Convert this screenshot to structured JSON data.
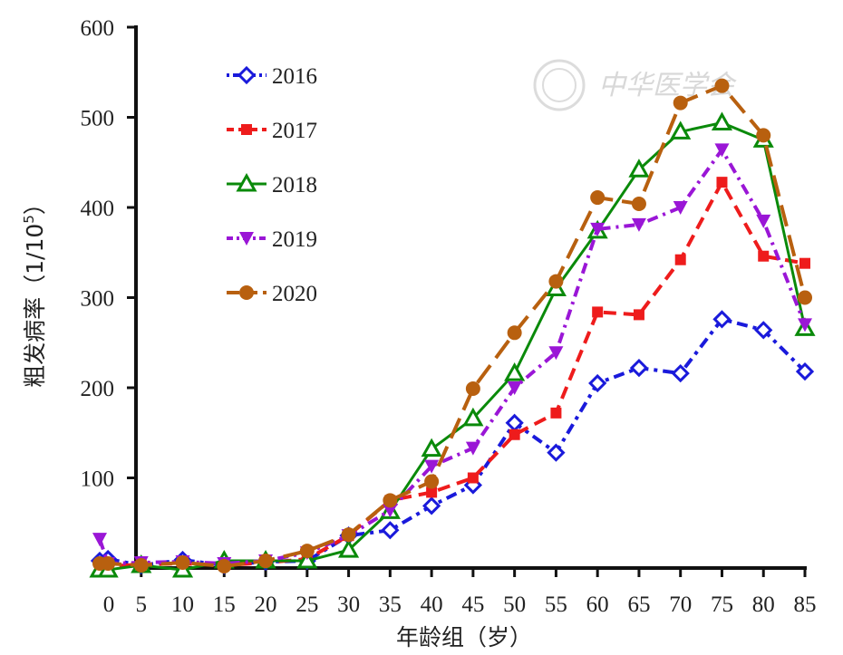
{
  "chart_data": {
    "type": "line",
    "xlabel": "年龄组（岁）",
    "ylabel": "粗发病率（1/10⁵）",
    "ylabel_main": "粗发病率（1/10",
    "ylabel_sup": "5",
    "ylabel_end": "）",
    "xlim": [
      0,
      85
    ],
    "ylim": [
      0,
      600
    ],
    "xticks": [
      "0",
      "5",
      "10",
      "15",
      "20",
      "25",
      "30",
      "35",
      "40",
      "45",
      "50",
      "55",
      "60",
      "65",
      "70",
      "75",
      "80",
      "85"
    ],
    "yticks": [
      "100",
      "200",
      "300",
      "400",
      "500",
      "600"
    ],
    "legend_position": "upper-left",
    "watermark": "中华医学会",
    "x": [
      0,
      1,
      5,
      10,
      15,
      20,
      25,
      30,
      35,
      40,
      45,
      50,
      55,
      60,
      65,
      70,
      75,
      80,
      85
    ],
    "series": [
      {
        "name": "2016",
        "color": "#1a1adb",
        "dash": "4,6,12,6",
        "marker": "diamond-open",
        "width": 4,
        "values": [
          8,
          10,
          3,
          9,
          3,
          7,
          8,
          36,
          42,
          69,
          92,
          161,
          128,
          205,
          222,
          216,
          276,
          264,
          218
        ]
      },
      {
        "name": "2017",
        "color": "#ee1c1c",
        "dash": "14,8",
        "marker": "square",
        "width": 4,
        "values": [
          4,
          2,
          4,
          5,
          3,
          6,
          10,
          36,
          75,
          84,
          100,
          148,
          172,
          284,
          281,
          342,
          428,
          346,
          338
        ]
      },
      {
        "name": "2018",
        "color": "#0a8a0a",
        "dash": "",
        "marker": "triangle-open",
        "width": 3,
        "values": [
          -2,
          -2,
          3,
          -2,
          8,
          8,
          8,
          20,
          63,
          132,
          166,
          216,
          310,
          374,
          442,
          484,
          494,
          475,
          266
        ]
      },
      {
        "name": "2019",
        "color": "#9a16d6",
        "dash": "12,6,3,6",
        "marker": "triangle-down",
        "width": 4,
        "values": [
          32,
          5,
          6,
          7,
          5,
          8,
          17,
          36,
          64,
          113,
          133,
          200,
          239,
          376,
          381,
          400,
          464,
          385,
          270
        ]
      },
      {
        "name": "2020",
        "color": "#b8600f",
        "dash": "24,10",
        "marker": "circle",
        "width": 4,
        "values": [
          5,
          5,
          3,
          6,
          2,
          8,
          19,
          37,
          75,
          96,
          199,
          261,
          318,
          411,
          404,
          516,
          535,
          480,
          300
        ]
      }
    ]
  }
}
